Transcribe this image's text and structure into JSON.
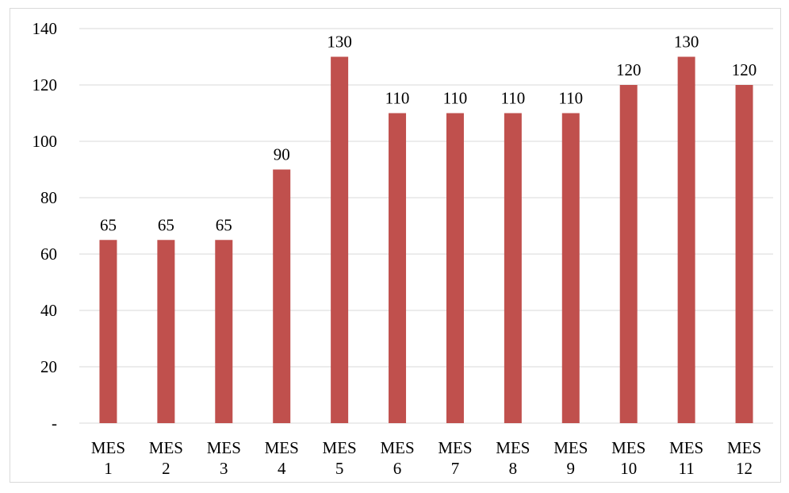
{
  "chart_data": {
    "type": "bar",
    "categories": [
      [
        "MES",
        "1"
      ],
      [
        "MES",
        "2"
      ],
      [
        "MES",
        "3"
      ],
      [
        "MES",
        "4"
      ],
      [
        "MES",
        "5"
      ],
      [
        "MES",
        "6"
      ],
      [
        "MES",
        "7"
      ],
      [
        "MES",
        "8"
      ],
      [
        "MES",
        "9"
      ],
      [
        "MES",
        "10"
      ],
      [
        "MES",
        "11"
      ],
      [
        "MES",
        "12"
      ]
    ],
    "values": [
      65,
      65,
      65,
      90,
      130,
      110,
      110,
      110,
      110,
      120,
      130,
      120
    ],
    "data_labels": [
      "65",
      "65",
      "65",
      "90",
      "130",
      "110",
      "110",
      "110",
      "110",
      "120",
      "130",
      "120"
    ],
    "ylim": [
      0,
      140
    ],
    "yticks": [
      0,
      20,
      40,
      60,
      80,
      100,
      120,
      140
    ],
    "ytick_labels": [
      "-",
      "20",
      "40",
      "60",
      "80",
      "100",
      "120",
      "140"
    ],
    "grid": true,
    "bar_color": "#c0504d",
    "grid_color": "#d9d9d9"
  }
}
